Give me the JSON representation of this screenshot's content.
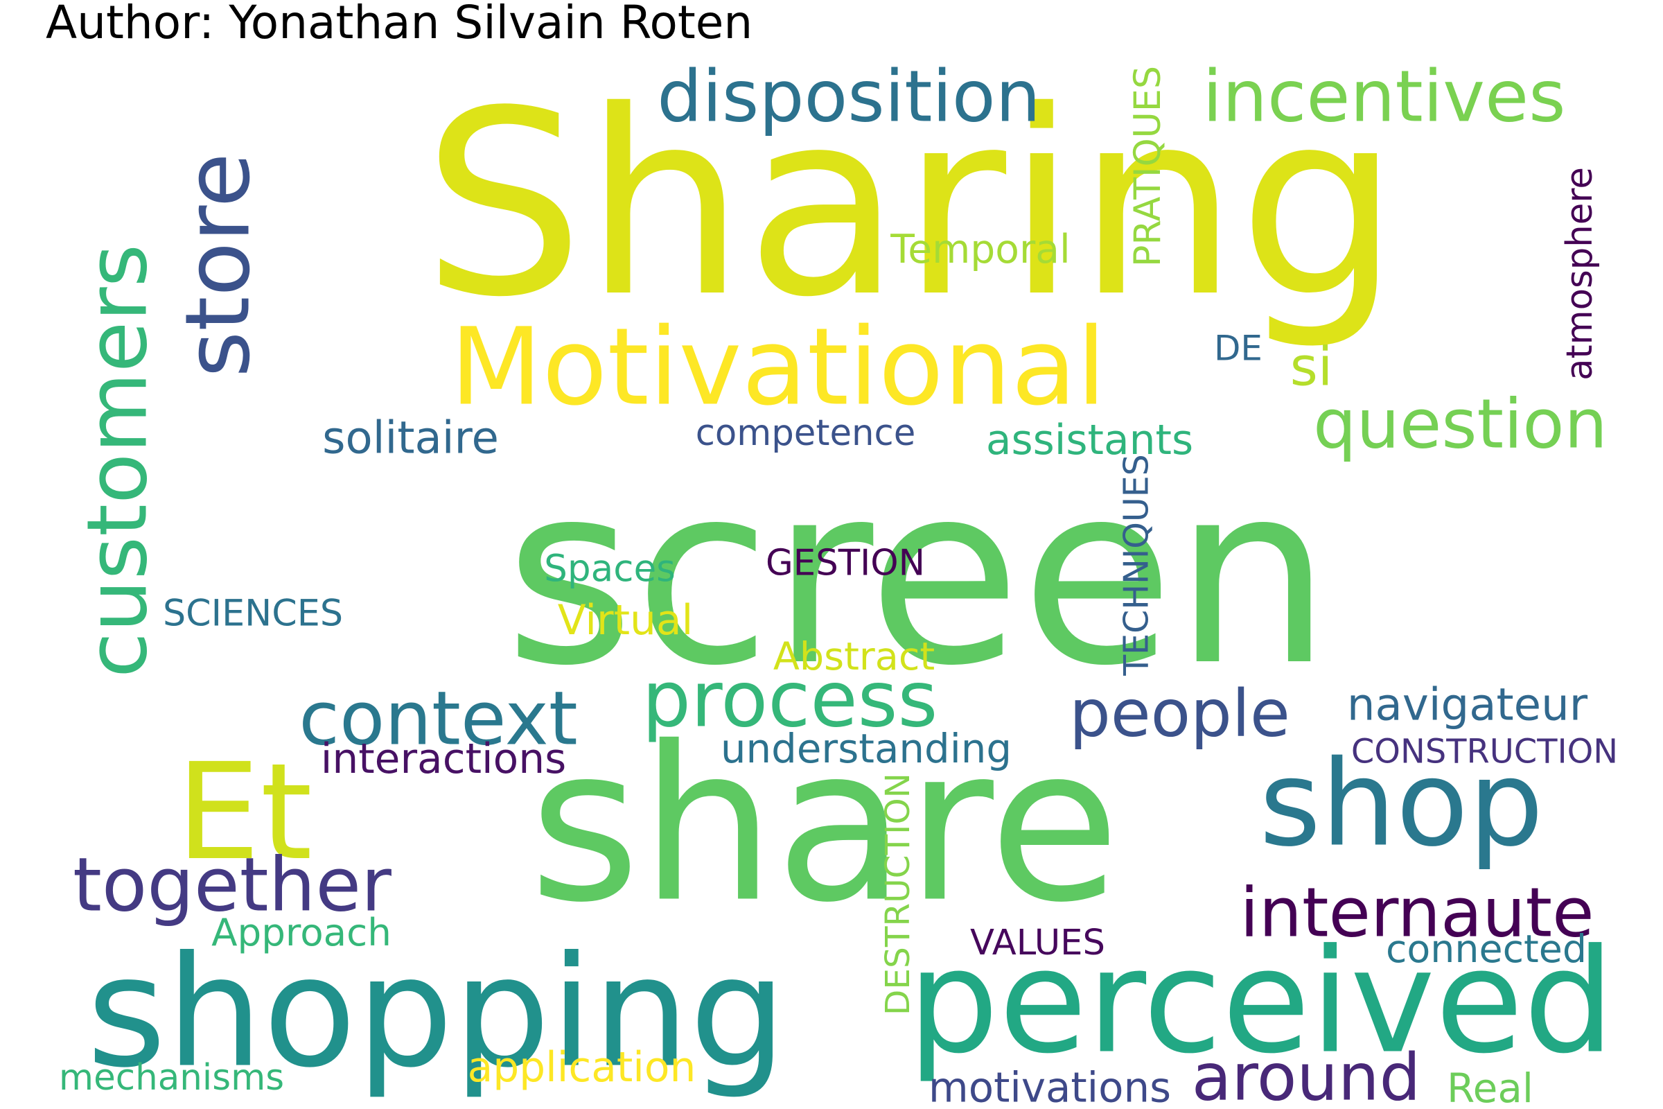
{
  "author": "Author: Yonathan Silvain Roten",
  "words": [
    {
      "text": "Sharing",
      "color": "#dde318",
      "vertical": false
    },
    {
      "text": "screen",
      "color": "#5ec962",
      "vertical": false
    },
    {
      "text": "share",
      "color": "#5ec962",
      "vertical": false
    },
    {
      "text": "Motivational",
      "color": "#fde725",
      "vertical": false
    },
    {
      "text": "customers",
      "color": "#35b779",
      "vertical": true
    },
    {
      "text": "store",
      "color": "#3b528b",
      "vertical": true
    },
    {
      "text": "shopping",
      "color": "#21918c",
      "vertical": false
    },
    {
      "text": "perceived",
      "color": "#22a884",
      "vertical": false
    },
    {
      "text": "Et",
      "color": "#d0e11c",
      "vertical": false
    },
    {
      "text": "shop",
      "color": "#2a788e",
      "vertical": false
    },
    {
      "text": "disposition",
      "color": "#2c728e",
      "vertical": false
    },
    {
      "text": "incentives",
      "color": "#7ad151",
      "vertical": false
    },
    {
      "text": "question",
      "color": "#75d054",
      "vertical": false
    },
    {
      "text": "process",
      "color": "#35b779",
      "vertical": false
    },
    {
      "text": "context",
      "color": "#2a788e",
      "vertical": false
    },
    {
      "text": "people",
      "color": "#3b528b",
      "vertical": false
    },
    {
      "text": "together",
      "color": "#443a83",
      "vertical": false
    },
    {
      "text": "internaute",
      "color": "#440154",
      "vertical": false
    },
    {
      "text": "around",
      "color": "#482878",
      "vertical": false
    },
    {
      "text": "navigateur",
      "color": "#31688e",
      "vertical": false
    },
    {
      "text": "solitaire",
      "color": "#31688e",
      "vertical": false
    },
    {
      "text": "si",
      "color": "#b5de2b",
      "vertical": false
    },
    {
      "text": "competence",
      "color": "#3b528b",
      "vertical": false
    },
    {
      "text": "assistants",
      "color": "#2fb47c",
      "vertical": false
    },
    {
      "text": "Temporal",
      "color": "#a5db36",
      "vertical": false
    },
    {
      "text": "PRATIQUES",
      "color": "#95d840",
      "vertical": true
    },
    {
      "text": "DE",
      "color": "#31688e",
      "vertical": false
    },
    {
      "text": "atmosphere",
      "color": "#440154",
      "vertical": true
    },
    {
      "text": "Spaces",
      "color": "#2fb47c",
      "vertical": false
    },
    {
      "text": "GESTION",
      "color": "#440154",
      "vertical": false
    },
    {
      "text": "TECHNIQUES",
      "color": "#355f8d",
      "vertical": true
    },
    {
      "text": "SCIENCES",
      "color": "#2c728e",
      "vertical": false
    },
    {
      "text": "Virtual",
      "color": "#e2e418",
      "vertical": false
    },
    {
      "text": "Abstract",
      "color": "#d2e21b",
      "vertical": false
    },
    {
      "text": "interactions",
      "color": "#471164",
      "vertical": false
    },
    {
      "text": "understanding",
      "color": "#2c728e",
      "vertical": false
    },
    {
      "text": "CONSTRUCTION",
      "color": "#46327e",
      "vertical": false
    },
    {
      "text": "DESTRUCTION",
      "color": "#84d44b",
      "vertical": true
    },
    {
      "text": "Approach",
      "color": "#35b779",
      "vertical": false
    },
    {
      "text": "VALUES",
      "color": "#46085c",
      "vertical": false
    },
    {
      "text": "connected",
      "color": "#2a788e",
      "vertical": false
    },
    {
      "text": "mechanisms",
      "color": "#35b779",
      "vertical": false
    },
    {
      "text": "application",
      "color": "#fde725",
      "vertical": false
    },
    {
      "text": "motivations",
      "color": "#3e4989",
      "vertical": false
    },
    {
      "text": "Real",
      "color": "#6ccd5a",
      "vertical": false
    }
  ]
}
